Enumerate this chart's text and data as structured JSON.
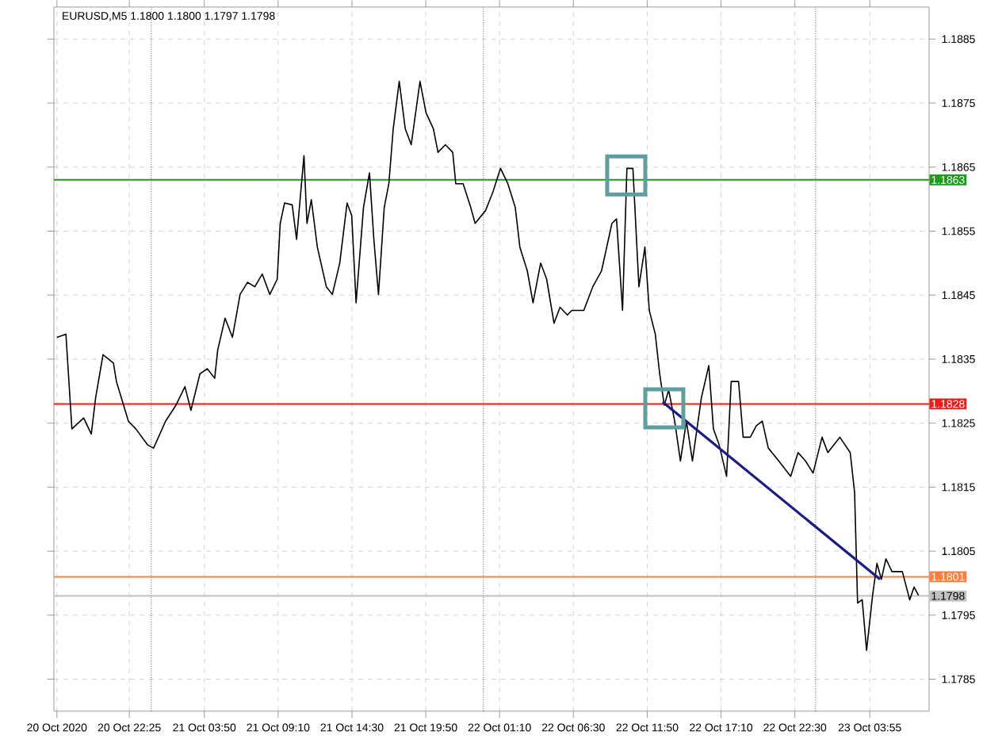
{
  "chart_data": {
    "type": "line",
    "title": "EURUSD,M5  1.1800 1.1800 1.1797 1.1798",
    "xlim": [
      "2020-10-20T16:58",
      "2020-10-23T08:12"
    ],
    "ylim": [
      1.178,
      1.189
    ],
    "xticks": [
      {
        "value": "2020-10-20T17:11",
        "label": "20 Oct 2020"
      },
      {
        "value": "2020-10-20T22:25",
        "label": "20 Oct 22:25"
      },
      {
        "value": "2020-10-21T03:50",
        "label": "21 Oct 03:50"
      },
      {
        "value": "2020-10-21T09:10",
        "label": "21 Oct 09:10"
      },
      {
        "value": "2020-10-21T14:30",
        "label": "21 Oct 14:30"
      },
      {
        "value": "2020-10-21T19:50",
        "label": "21 Oct 19:50"
      },
      {
        "value": "2020-10-22T01:10",
        "label": "22 Oct 01:10"
      },
      {
        "value": "2020-10-22T06:30",
        "label": "22 Oct 06:30"
      },
      {
        "value": "2020-10-22T11:50",
        "label": "22 Oct 11:50"
      },
      {
        "value": "2020-10-22T17:10",
        "label": "22 Oct 17:10"
      },
      {
        "value": "2020-10-22T22:30",
        "label": "22 Oct 22:30"
      },
      {
        "value": "2020-10-23T03:55",
        "label": "23 Oct 03:55"
      }
    ],
    "yticks": [
      1.1785,
      1.1795,
      1.1805,
      1.1815,
      1.1825,
      1.1835,
      1.1845,
      1.1855,
      1.1865,
      1.1875,
      1.1885
    ],
    "grid": true,
    "ref_lines": [
      {
        "axis": "x",
        "value": "2020-10-21T00:00",
        "color": "#000000",
        "line_style": "dotted"
      },
      {
        "axis": "x",
        "value": "2020-10-22T00:00",
        "color": "#000000",
        "line_style": "dotted"
      },
      {
        "axis": "x",
        "value": "2020-10-23T00:00",
        "color": "#000000",
        "line_style": "dotted"
      },
      {
        "axis": "y",
        "value": 1.1798,
        "label": "1.1798",
        "color": "#c0c0c0"
      },
      {
        "axis": "y",
        "value": 1.1863,
        "label": "1.1863",
        "color": "#1f9a1f"
      },
      {
        "axis": "y",
        "value": 1.1828,
        "label": "1.1828",
        "color": "#e8201c"
      },
      {
        "axis": "y",
        "value": 1.1801,
        "label": "1.1801",
        "color": "#ff7f3f"
      }
    ],
    "series": [
      {
        "type": "scatter",
        "marker": "square",
        "color": "#5f9ea0",
        "x": [
          "2020-10-22T10:19",
          "2020-10-22T13:04"
        ],
        "values": [
          1.18637,
          1.18273
        ]
      },
      {
        "color": "#000000",
        "x": [
          "2020-10-20T17:11",
          "2020-10-20T17:50",
          "2020-10-20T18:16",
          "2020-10-20T19:07",
          "2020-10-20T19:40",
          "2020-10-20T19:59",
          "2020-10-20T20:31",
          "2020-10-20T21:16",
          "2020-10-20T21:29",
          "2020-10-20T22:21",
          "2020-10-20T22:53",
          "2020-10-20T23:44",
          "2020-10-21T00:10",
          "2020-10-21T01:02",
          "2020-10-21T01:47",
          "2020-10-21T02:26",
          "2020-10-21T02:52",
          "2020-10-21T03:31",
          "2020-10-21T04:03",
          "2020-10-21T04:35",
          "2020-10-21T04:48",
          "2020-10-21T05:20",
          "2020-10-21T05:52",
          "2020-10-21T06:25",
          "2020-10-21T06:57",
          "2020-10-21T07:29",
          "2020-10-21T08:01",
          "2020-10-21T08:34",
          "2020-10-21T09:06",
          "2020-10-21T09:19",
          "2020-10-21T09:38",
          "2020-10-21T10:11",
          "2020-10-21T10:30",
          "2020-10-21T11:02",
          "2020-10-21T11:15",
          "2020-10-21T11:34",
          "2020-10-21T12:00",
          "2020-10-21T12:39",
          "2020-10-21T13:05",
          "2020-10-21T13:37",
          "2020-10-21T14:09",
          "2020-10-21T14:29",
          "2020-10-21T14:48",
          "2020-10-21T15:20",
          "2020-10-21T15:46",
          "2020-10-21T16:05",
          "2020-10-21T16:25",
          "2020-10-21T16:50",
          "2020-10-21T17:10",
          "2020-10-21T17:29",
          "2020-10-21T17:55",
          "2020-10-21T18:21",
          "2020-10-21T18:47",
          "2020-10-21T19:25",
          "2020-10-21T19:51",
          "2020-10-21T20:23",
          "2020-10-21T20:43",
          "2020-10-21T21:15",
          "2020-10-21T21:47",
          "2020-10-21T22:00",
          "2020-10-21T22:32",
          "2020-10-21T23:05",
          "2020-10-21T23:24",
          "2020-10-22T00:09",
          "2020-10-22T00:41",
          "2020-10-22T01:14",
          "2020-10-22T01:46",
          "2020-10-22T02:18",
          "2020-10-22T02:38",
          "2020-10-22T03:10",
          "2020-10-22T03:35",
          "2020-10-22T04:08",
          "2020-10-22T04:34",
          "2020-10-22T05:06",
          "2020-10-22T05:32",
          "2020-10-22T06:04",
          "2020-10-22T06:23",
          "2020-10-22T07:15",
          "2020-10-22T07:54",
          "2020-10-22T08:32",
          "2020-10-22T09:17",
          "2020-10-22T09:37",
          "2020-10-22T10:03",
          "2020-10-22T10:22",
          "2020-10-22T10:48",
          "2020-10-22T11:14",
          "2020-10-22T11:40",
          "2020-10-22T11:59",
          "2020-10-22T12:25",
          "2020-10-22T12:44",
          "2020-10-22T13:04",
          "2020-10-22T13:23",
          "2020-10-22T13:49",
          "2020-10-22T14:14",
          "2020-10-22T14:40",
          "2020-10-22T15:06",
          "2020-10-22T15:45",
          "2020-10-22T16:17",
          "2020-10-22T16:37",
          "2020-10-22T17:02",
          "2020-10-22T17:34",
          "2020-10-22T17:54",
          "2020-10-22T18:26",
          "2020-10-22T18:46",
          "2020-10-22T19:17",
          "2020-10-22T19:43",
          "2020-10-22T20:09",
          "2020-10-22T20:35",
          "2020-10-22T21:20",
          "2020-10-22T22:12",
          "2020-10-22T22:44",
          "2020-10-22T23:16",
          "2020-10-22T23:49",
          "2020-10-23T00:28",
          "2020-10-23T00:53",
          "2020-10-23T01:45",
          "2020-10-23T02:30",
          "2020-10-23T02:49",
          "2020-10-23T03:02",
          "2020-10-23T03:22",
          "2020-10-23T03:41",
          "2020-10-23T04:07",
          "2020-10-23T04:26",
          "2020-10-23T04:45",
          "2020-10-23T05:05",
          "2020-10-23T05:31",
          "2020-10-23T05:50",
          "2020-10-23T06:16",
          "2020-10-23T06:48",
          "2020-10-23T07:07",
          "2020-10-23T07:26"
        ],
        "values": [
          1.18384,
          1.18389,
          1.18241,
          1.18258,
          1.18233,
          1.1829,
          1.18357,
          1.18344,
          1.18315,
          1.18253,
          1.18241,
          1.18216,
          1.18211,
          1.18253,
          1.18278,
          1.18307,
          1.1827,
          1.18327,
          1.18335,
          1.1832,
          1.18364,
          1.18414,
          1.18384,
          1.18451,
          1.1847,
          1.18463,
          1.18483,
          1.18451,
          1.18475,
          1.18562,
          1.18594,
          1.18591,
          1.18537,
          1.18668,
          1.18562,
          1.18599,
          1.18525,
          1.18463,
          1.18451,
          1.185,
          1.18594,
          1.18574,
          1.18438,
          1.18587,
          1.18641,
          1.18537,
          1.18451,
          1.18587,
          1.18624,
          1.1871,
          1.18784,
          1.1871,
          1.18685,
          1.18784,
          1.18735,
          1.1871,
          1.18673,
          1.18685,
          1.18673,
          1.18624,
          1.18624,
          1.18587,
          1.18562,
          1.18582,
          1.18611,
          1.18648,
          1.18624,
          1.18587,
          1.18525,
          1.18488,
          1.18438,
          1.185,
          1.18475,
          1.18406,
          1.18431,
          1.18419,
          1.18426,
          1.18426,
          1.18463,
          1.18488,
          1.18562,
          1.18569,
          1.18426,
          1.18648,
          1.18648,
          1.18463,
          1.18525,
          1.18426,
          1.18389,
          1.18327,
          1.18278,
          1.18302,
          1.18253,
          1.18191,
          1.18253,
          1.18191,
          1.1829,
          1.1834,
          1.18241,
          1.18216,
          1.18167,
          1.18315,
          1.18315,
          1.18228,
          1.18228,
          1.18246,
          1.18253,
          1.18211,
          1.18191,
          1.18167,
          1.18204,
          1.18191,
          1.18172,
          1.18228,
          1.18204,
          1.18228,
          1.18204,
          1.18142,
          1.17969,
          1.17974,
          1.17895,
          1.17981,
          1.18031,
          1.18006,
          1.18038,
          1.18018,
          1.18018,
          1.18018,
          1.17974,
          1.17994,
          1.17981
        ]
      },
      {
        "color": "#1c1c80",
        "x": [
          "2020-10-22T12:57",
          "2020-10-23T04:39"
        ],
        "values": [
          1.18283,
          1.18006
        ]
      }
    ]
  }
}
